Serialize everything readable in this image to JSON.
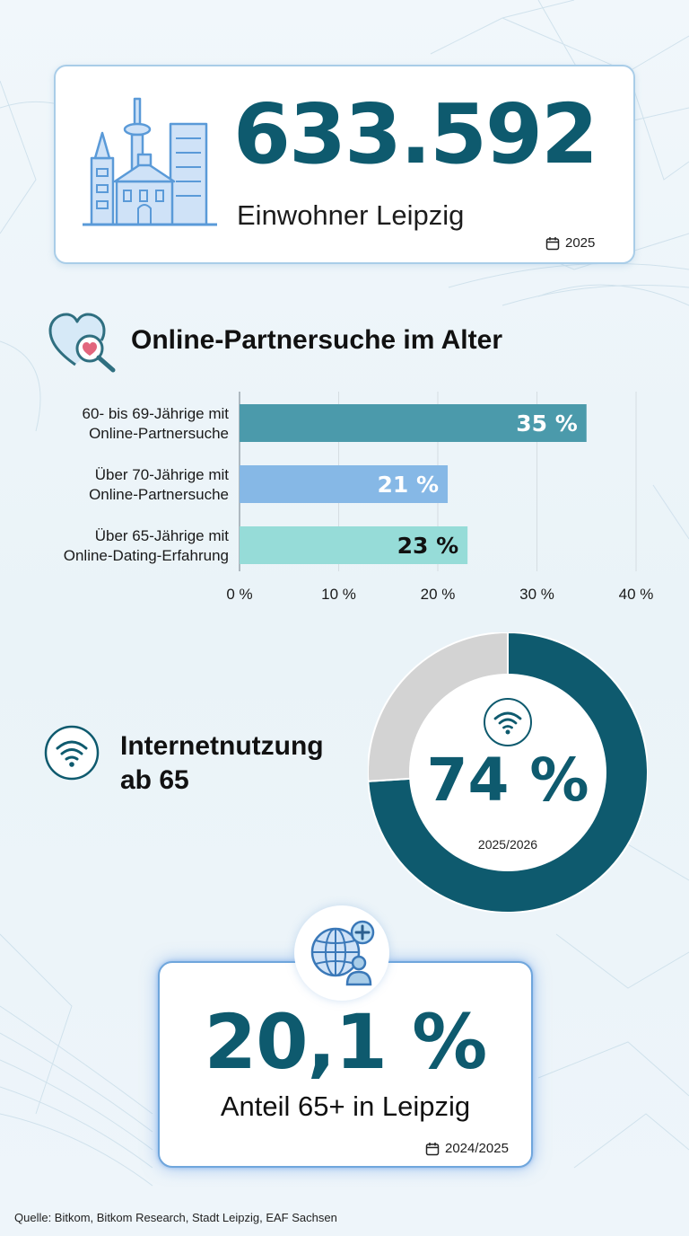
{
  "population": {
    "value": "633.592",
    "label": "Einwohner Leipzig",
    "year": "2025",
    "icon": "city-skyline-icon"
  },
  "online_dating": {
    "title": "Online-Partnersuche im Alter",
    "icon": "heart-search-icon"
  },
  "internet_usage": {
    "title_line1": "Internetnutzung",
    "title_line2": "ab 65",
    "value": "74 %",
    "year": "2025/2026",
    "icon": "wifi-icon"
  },
  "seniors_share": {
    "value": "20,1 %",
    "label": "Anteil 65+ in Leipzig",
    "year": "2024/2025",
    "icon": "globe-user-icon"
  },
  "source": "Quelle: Bitkom, Bitkom Research, Stadt Leipzig, EAF Sachsen",
  "colors": {
    "accent": "#0e5a6e",
    "bar1": "#4b9aab",
    "bar2": "#86b8e6",
    "bar3": "#96dcd8",
    "donut_fill": "#0e5a6e",
    "donut_rest": "#d3d3d3",
    "card_border": "#a9cde8",
    "icon_blue": "#5a9ad8"
  },
  "chart_data": [
    {
      "type": "bar",
      "orientation": "horizontal",
      "categories": [
        [
          "60- bis 69-Jährige mit",
          "Online-Partnersuche"
        ],
        [
          "Über 70-Jährige mit",
          "Online-Partnersuche"
        ],
        [
          "Über 65-Jährige mit",
          "Online-Dating-Erfahrung"
        ]
      ],
      "values": [
        35,
        21,
        23
      ],
      "value_labels": [
        "35 %",
        "21 %",
        "23 %"
      ],
      "xlim": [
        0,
        40
      ],
      "xticks": [
        0,
        10,
        20,
        30,
        40
      ],
      "xtick_labels": [
        "0 %",
        "10 %",
        "20 %",
        "30 %",
        "40 %"
      ],
      "grid": "vertical"
    },
    {
      "type": "pie",
      "style": "donut",
      "values": [
        74,
        26
      ],
      "center_label": "74 %"
    }
  ]
}
